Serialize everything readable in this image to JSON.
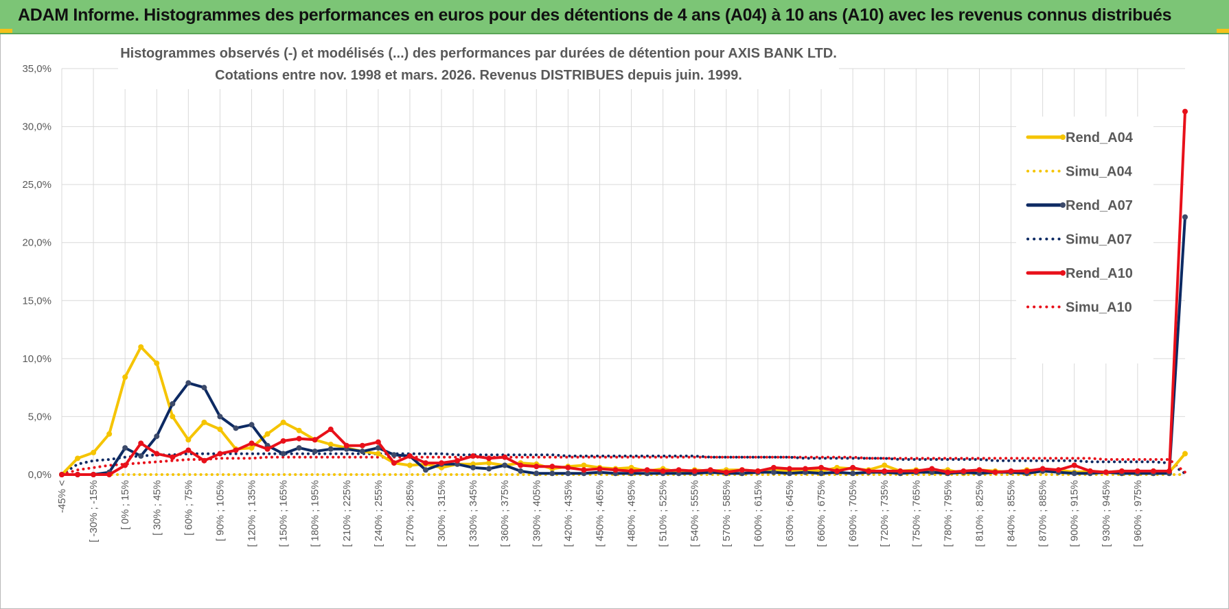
{
  "banner": {
    "title": "ADAM Informe. Histogrammes des performances en euros pour des détentions de 4 ans (A04) à 10 ans (A10) avec les revenus connus distribués"
  },
  "colors": {
    "banner_bg": "#7cc576",
    "A04": "#f5c400",
    "A07": "#0d2a63",
    "A10": "#e8101a",
    "grid": "#d9d9d9",
    "text": "#595959"
  },
  "chart_data": {
    "type": "line",
    "title_line1": "Histogrammes observés (-) et modélisés (...) des performances par durées de détention pour AXIS BANK LTD.",
    "title_line2": "Cotations entre nov. 1998 et mars. 2026. Revenus DISTRIBUES depuis juin. 1999.",
    "ylim": [
      0,
      35
    ],
    "yticks": [
      "0,0%",
      "5,0%",
      "10,0%",
      "15,0%",
      "20,0%",
      "25,0%",
      "30,0%",
      "35,0%"
    ],
    "grid": true,
    "legend_position": "right",
    "x_tick_labels": [
      "-45% <",
      "[ -30% ; -15%",
      "[ 0% ; 15%",
      "[ 30% ; 45%",
      "[ 60% ; 75%",
      "[ 90% ; 105%",
      "[ 120% ; 135%",
      "[ 150% ; 165%",
      "[ 180% ; 195%",
      "[ 210% ; 225%",
      "[ 240% ; 255%",
      "[ 270% ; 285%",
      "[ 300% ; 315%",
      "[ 330% ; 345%",
      "[ 360% ; 375%",
      "[ 390% ; 405%",
      "[ 420% ; 435%",
      "[ 450% ; 465%",
      "[ 480% ; 495%",
      "[ 510% ; 525%",
      "[ 540% ; 555%",
      "[ 570% ; 585%",
      "[ 600% ; 615%",
      "[ 630% ; 645%",
      "[ 660% ; 675%",
      "[ 690% ; 705%",
      "[ 720% ; 735%",
      "[ 750% ; 765%",
      "[ 780% ; 795%",
      "[ 810% ; 825%",
      "[ 840% ; 855%",
      "[ 870% ; 885%",
      "[ 900% ; 915%",
      "[ 930% ; 945%",
      "[ 960% ; 975%"
    ],
    "series": [
      {
        "name": "Rend_A04",
        "style": "solid",
        "color": "#f5c400",
        "values": [
          0,
          1.4,
          1.9,
          3.5,
          8.4,
          11.0,
          9.6,
          5.0,
          3.0,
          4.5,
          3.9,
          2.2,
          2.3,
          3.5,
          4.5,
          3.8,
          3.0,
          2.6,
          2.3,
          2.0,
          1.8,
          1.0,
          0.8,
          0.9,
          0.6,
          0.9,
          0.9,
          1.0,
          0.8,
          1.0,
          0.9,
          0.5,
          0.7,
          0.8,
          0.6,
          0.5,
          0.6,
          0.3,
          0.5,
          0.2,
          0.4,
          0.3,
          0.4,
          0.4,
          0.3,
          0.4,
          0.3,
          0.4,
          0.3,
          0.6,
          0.5,
          0.4,
          0.8,
          0.3,
          0.4,
          0.3,
          0.4,
          0.1,
          0.4,
          0.3,
          0.2,
          0.4,
          0.3,
          0.4,
          0.2,
          0.3,
          0.2,
          0.3,
          0.2,
          0.3,
          0.2,
          1.8
        ]
      },
      {
        "name": "Simu_A04",
        "style": "dotted",
        "color": "#f5c400",
        "values": [
          0,
          0,
          0,
          0,
          0,
          0,
          0,
          0,
          0,
          0,
          0,
          0,
          0,
          0,
          0,
          0,
          0,
          0,
          0,
          0,
          0,
          0,
          0,
          0,
          0,
          0,
          0,
          0,
          0,
          0,
          0,
          0,
          0,
          0,
          0,
          0,
          0,
          0,
          0,
          0,
          0,
          0,
          0,
          0,
          0,
          0,
          0,
          0,
          0,
          0,
          0,
          0,
          0,
          0,
          0,
          0,
          0,
          0,
          0,
          0,
          0,
          0,
          0,
          0,
          0,
          0,
          0,
          0,
          0,
          0,
          0,
          0
        ]
      },
      {
        "name": "Rend_A07",
        "style": "solid",
        "color": "#0d2a63",
        "values": [
          0,
          0,
          0,
          0.2,
          2.3,
          1.6,
          3.3,
          6.1,
          7.9,
          7.5,
          5.0,
          4.0,
          4.3,
          2.5,
          1.8,
          2.3,
          2.0,
          2.2,
          2.2,
          2.0,
          2.3,
          1.7,
          1.6,
          0.4,
          0.9,
          0.9,
          0.6,
          0.5,
          0.8,
          0.3,
          0.1,
          0.1,
          0.1,
          0.1,
          0.2,
          0.1,
          0.1,
          0.1,
          0.1,
          0.1,
          0.1,
          0.2,
          0.1,
          0.1,
          0.2,
          0.2,
          0.1,
          0.2,
          0.1,
          0.2,
          0.1,
          0.2,
          0.2,
          0.1,
          0.2,
          0.2,
          0.1,
          0.2,
          0.1,
          0.2,
          0.2,
          0.1,
          0.3,
          0.2,
          0.1,
          0.1,
          0.2,
          0.1,
          0.1,
          0.1,
          0.1,
          22.2
        ]
      },
      {
        "name": "Simu_A07",
        "style": "dotted",
        "color": "#0d2a63",
        "values": [
          0,
          0.9,
          1.2,
          1.3,
          1.5,
          1.6,
          1.7,
          1.7,
          1.8,
          1.8,
          1.8,
          1.8,
          1.8,
          1.8,
          1.8,
          1.8,
          1.8,
          1.8,
          1.8,
          1.8,
          1.8,
          1.8,
          1.8,
          1.8,
          1.8,
          1.7,
          1.7,
          1.7,
          1.7,
          1.7,
          1.7,
          1.7,
          1.6,
          1.6,
          1.6,
          1.6,
          1.6,
          1.6,
          1.6,
          1.6,
          1.6,
          1.5,
          1.5,
          1.5,
          1.5,
          1.5,
          1.5,
          1.4,
          1.4,
          1.4,
          1.4,
          1.4,
          1.4,
          1.3,
          1.3,
          1.3,
          1.3,
          1.3,
          1.3,
          1.2,
          1.2,
          1.2,
          1.2,
          1.2,
          1.2,
          1.1,
          1.1,
          1.1,
          1.1,
          1.1,
          1.0,
          0.1
        ]
      },
      {
        "name": "Rend_A10",
        "style": "solid",
        "color": "#e8101a",
        "values": [
          0,
          0,
          0,
          0,
          0.8,
          2.7,
          1.8,
          1.5,
          2.1,
          1.2,
          1.8,
          2.1,
          2.7,
          2.2,
          2.9,
          3.1,
          3.0,
          3.9,
          2.5,
          2.5,
          2.8,
          1.0,
          1.6,
          1.0,
          1.0,
          1.2,
          1.6,
          1.4,
          1.5,
          0.8,
          0.7,
          0.7,
          0.6,
          0.4,
          0.5,
          0.4,
          0.3,
          0.4,
          0.3,
          0.4,
          0.3,
          0.4,
          0.2,
          0.4,
          0.3,
          0.6,
          0.5,
          0.5,
          0.6,
          0.3,
          0.6,
          0.3,
          0.3,
          0.3,
          0.3,
          0.5,
          0.2,
          0.3,
          0.4,
          0.2,
          0.3,
          0.3,
          0.5,
          0.4,
          0.8,
          0.3,
          0.2,
          0.3,
          0.3,
          0.3,
          0.3,
          31.3
        ]
      },
      {
        "name": "Simu_A10",
        "style": "dotted",
        "color": "#e8101a",
        "values": [
          0,
          0.4,
          0.6,
          0.8,
          0.9,
          1.0,
          1.1,
          1.2,
          1.3,
          1.3,
          1.4,
          1.4,
          1.4,
          1.5,
          1.5,
          1.5,
          1.5,
          1.5,
          1.5,
          1.5,
          1.5,
          1.5,
          1.5,
          1.5,
          1.5,
          1.5,
          1.5,
          1.5,
          1.5,
          1.5,
          1.5,
          1.5,
          1.5,
          1.5,
          1.5,
          1.5,
          1.5,
          1.5,
          1.5,
          1.5,
          1.5,
          1.5,
          1.5,
          1.5,
          1.5,
          1.5,
          1.5,
          1.5,
          1.5,
          1.5,
          1.5,
          1.4,
          1.4,
          1.4,
          1.4,
          1.4,
          1.4,
          1.4,
          1.4,
          1.4,
          1.4,
          1.4,
          1.4,
          1.4,
          1.4,
          1.4,
          1.3,
          1.3,
          1.3,
          1.3,
          1.3,
          0.2
        ]
      }
    ]
  }
}
